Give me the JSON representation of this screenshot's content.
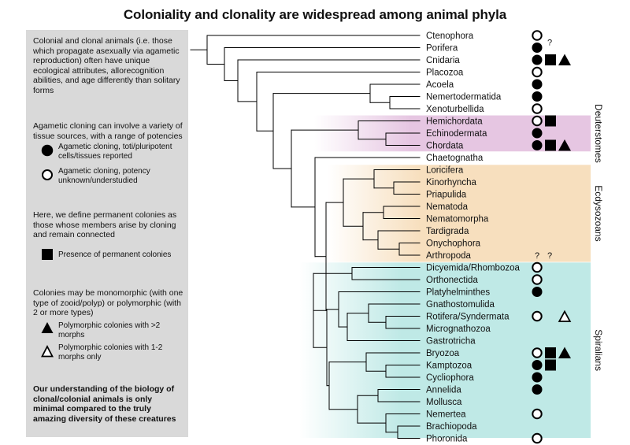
{
  "title": "Coloniality and clonality are widespread among animal phyla",
  "legend": {
    "intro": "Colonial and clonal animals (i.e. those which propagate asexually via agametic reproduction) often have unique ecological attributes, allorecognition abilities, and age differently than solitary forms",
    "cloning_intro": "Agametic cloning can involve a variety of tissue sources, with a range of potencies",
    "filled_circle": "Agametic cloning, toti/pluripotent cells/tissues reported",
    "open_circle": "Agametic cloning, potency unknown/understudied",
    "colony_intro": "Here, we define permanent colonies as those whose members arise by cloning and remain connected",
    "square": "Presence of permanent colonies",
    "morph_intro": "Colonies may be monomorphic (with one type of zooid/polyp) or polymorphic (with 2 or more types)",
    "filled_triangle": "Polymorphic colonies with >2 morphs",
    "open_triangle": "Polymorphic colonies with 1-2 morphs only",
    "conclusion": "Our understanding of the biology of clonal/colonial animals is only minimal compared to the truly amazing diversity of these creatures"
  },
  "colors": {
    "deuterostomes": "#e6c6e2",
    "ecdysozoans": "#f7dfbe",
    "spiralians": "#bfe9e6",
    "panel": "#d9d9d9"
  },
  "clades": [
    {
      "name": "Deuterstomes",
      "from": 8,
      "to": 10
    },
    {
      "name": "Ecdysozoans",
      "from": 12,
      "to": 19
    },
    {
      "name": "Spiralians",
      "from": 20,
      "to": 33
    }
  ],
  "taxa": [
    {
      "name": "Ctenophora",
      "circle": "open"
    },
    {
      "name": "Porifera",
      "circle": "filled",
      "q_after_circle": "?"
    },
    {
      "name": "Cnidaria",
      "circle": "filled",
      "square": true,
      "triangle": "filled"
    },
    {
      "name": "Placozoa",
      "circle": "open"
    },
    {
      "name": "Acoela",
      "circle": "filled"
    },
    {
      "name": "Nemertodermatida",
      "circle": "filled"
    },
    {
      "name": "Xenoturbellida",
      "circle": "open"
    },
    {
      "name": "Hemichordata",
      "circle": "open",
      "square": true
    },
    {
      "name": "Echinodermata",
      "circle": "filled"
    },
    {
      "name": "Chordata",
      "circle": "filled",
      "square": true,
      "triangle": "filled"
    },
    {
      "name": "Chaetognatha"
    },
    {
      "name": "Loricifera"
    },
    {
      "name": "Kinorhyncha"
    },
    {
      "name": "Priapulida"
    },
    {
      "name": "Nematoda"
    },
    {
      "name": "Nematomorpha"
    },
    {
      "name": "Tardigrada"
    },
    {
      "name": "Onychophora"
    },
    {
      "name": "Arthropoda",
      "q_circle": "?",
      "q_square": "?"
    },
    {
      "name": "Dicyemida/Rhombozoa",
      "circle": "open"
    },
    {
      "name": "Orthonectida",
      "circle": "open"
    },
    {
      "name": "Platyhelminthes",
      "circle": "filled"
    },
    {
      "name": "Gnathostomulida"
    },
    {
      "name": "Rotifera/Syndermata",
      "circle": "open",
      "triangle": "open"
    },
    {
      "name": "Micrognathozoa"
    },
    {
      "name": "Gastrotricha"
    },
    {
      "name": "Bryozoa",
      "circle": "open",
      "square": true,
      "triangle": "filled"
    },
    {
      "name": "Kamptozoa",
      "circle": "filled",
      "square": true
    },
    {
      "name": "Cycliophora",
      "circle": "filled"
    },
    {
      "name": "Annelida",
      "circle": "filled"
    },
    {
      "name": "Mollusca"
    },
    {
      "name": "Nemertea",
      "circle": "open"
    },
    {
      "name": "Brachiopoda"
    },
    {
      "name": "Phoronida",
      "circle": "open"
    }
  ]
}
